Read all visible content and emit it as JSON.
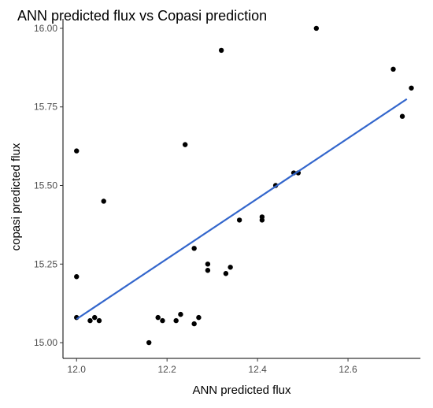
{
  "chart_data": {
    "type": "scatter",
    "title": "ANN predicted flux vs Copasi prediction",
    "xlabel": "ANN predicted flux",
    "ylabel": "copasi predicted flux",
    "xlim": [
      11.97,
      12.76
    ],
    "ylim": [
      14.95,
      16.03
    ],
    "x_ticks": [
      12.0,
      12.2,
      12.4,
      12.6
    ],
    "x_tick_labels": [
      "12.0",
      "12.2",
      "12.4",
      "12.6"
    ],
    "y_ticks": [
      15.0,
      15.25,
      15.5,
      15.75,
      16.0
    ],
    "y_tick_labels": [
      "15.00",
      "15.25",
      "15.50",
      "15.75",
      "16.00"
    ],
    "grid": false,
    "legend": "none",
    "point_color": "#000000",
    "trend_color": "#3366cc",
    "points": [
      {
        "x": 12.0,
        "y": 15.61
      },
      {
        "x": 12.0,
        "y": 15.21
      },
      {
        "x": 12.0,
        "y": 15.08
      },
      {
        "x": 12.03,
        "y": 15.07
      },
      {
        "x": 12.04,
        "y": 15.08
      },
      {
        "x": 12.05,
        "y": 15.07
      },
      {
        "x": 12.06,
        "y": 15.45
      },
      {
        "x": 12.16,
        "y": 15.0
      },
      {
        "x": 12.18,
        "y": 15.08
      },
      {
        "x": 12.19,
        "y": 15.07
      },
      {
        "x": 12.22,
        "y": 15.07
      },
      {
        "x": 12.23,
        "y": 15.09
      },
      {
        "x": 12.24,
        "y": 15.63
      },
      {
        "x": 12.26,
        "y": 15.3
      },
      {
        "x": 12.26,
        "y": 15.06
      },
      {
        "x": 12.27,
        "y": 15.08
      },
      {
        "x": 12.29,
        "y": 15.25
      },
      {
        "x": 12.29,
        "y": 15.23
      },
      {
        "x": 12.32,
        "y": 15.93
      },
      {
        "x": 12.33,
        "y": 15.22
      },
      {
        "x": 12.34,
        "y": 15.24
      },
      {
        "x": 12.36,
        "y": 15.39
      },
      {
        "x": 12.41,
        "y": 15.4
      },
      {
        "x": 12.41,
        "y": 15.39
      },
      {
        "x": 12.44,
        "y": 15.5
      },
      {
        "x": 12.48,
        "y": 15.54
      },
      {
        "x": 12.49,
        "y": 15.54
      },
      {
        "x": 12.53,
        "y": 16.0
      },
      {
        "x": 12.7,
        "y": 15.87
      },
      {
        "x": 12.72,
        "y": 15.72
      },
      {
        "x": 12.74,
        "y": 15.81
      }
    ],
    "trend_line": {
      "x": [
        12.0,
        12.73
      ],
      "y": [
        15.075,
        15.775
      ]
    }
  }
}
